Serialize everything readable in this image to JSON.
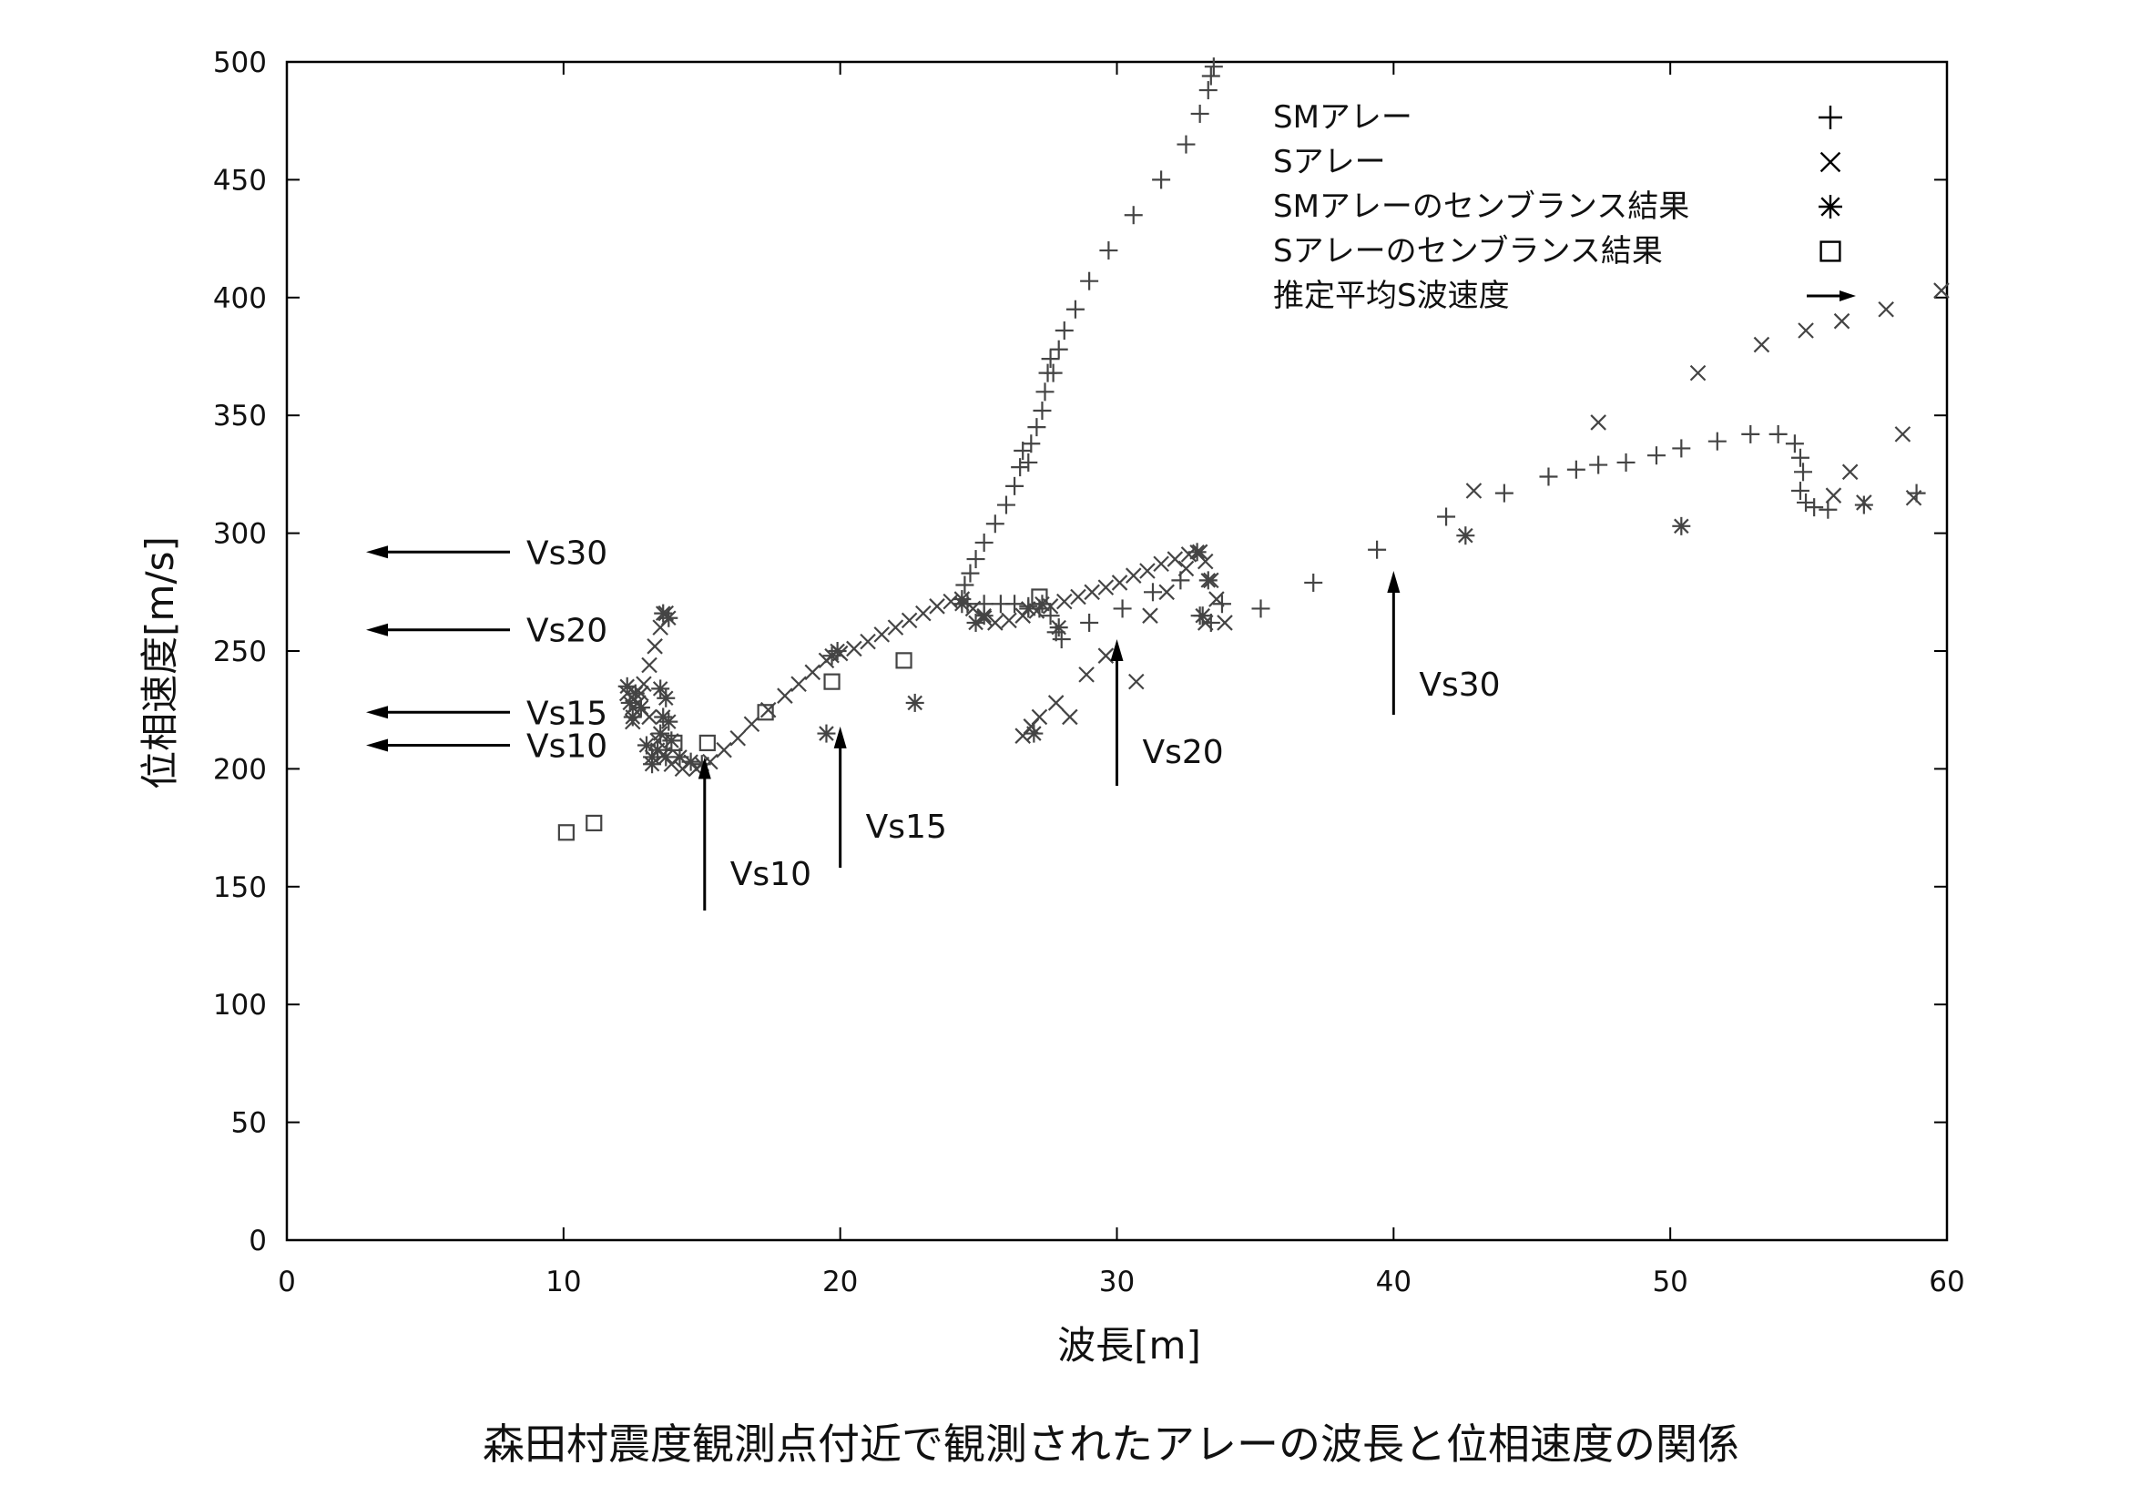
{
  "caption": "森田村震度観測点付近で観測されたアレーの波長と位相速度の関係",
  "chart_data": {
    "type": "scatter",
    "title": "",
    "xlabel": "波長[m]",
    "ylabel": "位相速度[m/s]",
    "xlim": [
      0,
      60
    ],
    "ylim": [
      0,
      500
    ],
    "xticks": [
      "0",
      "10",
      "20",
      "30",
      "40",
      "50",
      "60"
    ],
    "yticks": [
      "0",
      "50",
      "100",
      "150",
      "200",
      "250",
      "300",
      "350",
      "400",
      "450",
      "500"
    ],
    "grid": false,
    "legend_position": "top-right",
    "legend": [
      {
        "label": "SMアレー",
        "symbol": "+"
      },
      {
        "label": "Sアレー",
        "symbol": "×"
      },
      {
        "label": "SMアレーのセンブランス結果",
        "symbol": "※"
      },
      {
        "label": "Sアレーのセンブランス結果",
        "symbol": "□"
      },
      {
        "label": "推定平均S波速度",
        "symbol": "→"
      }
    ],
    "series": [
      {
        "name": "SMアレー",
        "marker": "plus",
        "points": [
          [
            24.4,
            272
          ],
          [
            24.5,
            278
          ],
          [
            24.7,
            283
          ],
          [
            24.9,
            289
          ],
          [
            25.2,
            296
          ],
          [
            25.6,
            304
          ],
          [
            26.0,
            312
          ],
          [
            26.3,
            320
          ],
          [
            26.5,
            328
          ],
          [
            26.6,
            335
          ],
          [
            26.8,
            330
          ],
          [
            26.9,
            338
          ],
          [
            27.1,
            345
          ],
          [
            27.3,
            352
          ],
          [
            27.4,
            360
          ],
          [
            27.5,
            368
          ],
          [
            27.6,
            374
          ],
          [
            27.7,
            368
          ],
          [
            27.9,
            378
          ],
          [
            28.1,
            386
          ],
          [
            28.5,
            395
          ],
          [
            29.0,
            407
          ],
          [
            29.7,
            420
          ],
          [
            30.6,
            435
          ],
          [
            31.6,
            450
          ],
          [
            32.5,
            465
          ],
          [
            33.0,
            478
          ],
          [
            33.3,
            488
          ],
          [
            33.4,
            494
          ],
          [
            33.5,
            498
          ],
          [
            24.6,
            270
          ],
          [
            25.2,
            270
          ],
          [
            25.8,
            270
          ],
          [
            26.3,
            270
          ],
          [
            26.8,
            269
          ],
          [
            27.2,
            268
          ],
          [
            27.6,
            265
          ],
          [
            27.8,
            258
          ],
          [
            28.0,
            255
          ],
          [
            29.0,
            262
          ],
          [
            30.2,
            268
          ],
          [
            31.3,
            275
          ],
          [
            32.3,
            280
          ],
          [
            33.0,
            265
          ],
          [
            33.4,
            262
          ],
          [
            33.8,
            270
          ],
          [
            35.2,
            268
          ],
          [
            37.1,
            279
          ],
          [
            39.4,
            293
          ],
          [
            41.9,
            307
          ],
          [
            44.0,
            317
          ],
          [
            45.6,
            324
          ],
          [
            46.6,
            327
          ],
          [
            47.4,
            329
          ],
          [
            48.4,
            330
          ],
          [
            49.5,
            333
          ],
          [
            50.4,
            336
          ],
          [
            51.7,
            339
          ],
          [
            52.9,
            342
          ],
          [
            53.9,
            342
          ],
          [
            54.5,
            338
          ],
          [
            54.7,
            332
          ],
          [
            54.8,
            326
          ],
          [
            54.7,
            318
          ],
          [
            54.9,
            313
          ],
          [
            55.2,
            311
          ],
          [
            55.7,
            310
          ],
          [
            57.0,
            312
          ],
          [
            58.9,
            317
          ]
        ]
      },
      {
        "name": "Sアレー",
        "marker": "cross",
        "points": [
          [
            12.5,
            220
          ],
          [
            12.7,
            228
          ],
          [
            12.9,
            236
          ],
          [
            13.1,
            244
          ],
          [
            13.3,
            252
          ],
          [
            13.5,
            260
          ],
          [
            13.7,
            266
          ],
          [
            12.3,
            232
          ],
          [
            12.5,
            226
          ],
          [
            12.8,
            232
          ],
          [
            13.1,
            222
          ],
          [
            13.4,
            212
          ],
          [
            13.6,
            206
          ],
          [
            13.9,
            202
          ],
          [
            14.3,
            200
          ],
          [
            14.8,
            200
          ],
          [
            15.3,
            203
          ],
          [
            15.8,
            208
          ],
          [
            16.3,
            213
          ],
          [
            16.8,
            219
          ],
          [
            17.4,
            225
          ],
          [
            18.0,
            231
          ],
          [
            18.5,
            236
          ],
          [
            19.0,
            241
          ],
          [
            19.5,
            246
          ],
          [
            20.0,
            249
          ],
          [
            20.5,
            251
          ],
          [
            21.0,
            254
          ],
          [
            21.5,
            257
          ],
          [
            22.0,
            260
          ],
          [
            22.5,
            263
          ],
          [
            23.0,
            266
          ],
          [
            23.5,
            269
          ],
          [
            24.0,
            271
          ],
          [
            24.4,
            272
          ],
          [
            24.8,
            268
          ],
          [
            25.2,
            264
          ],
          [
            25.6,
            262
          ],
          [
            26.1,
            263
          ],
          [
            26.6,
            265
          ],
          [
            27.1,
            267
          ],
          [
            27.6,
            269
          ],
          [
            28.1,
            271
          ],
          [
            28.6,
            273
          ],
          [
            29.1,
            275
          ],
          [
            29.6,
            277
          ],
          [
            30.1,
            279
          ],
          [
            30.6,
            282
          ],
          [
            31.1,
            284
          ],
          [
            31.6,
            287
          ],
          [
            32.1,
            289
          ],
          [
            32.6,
            291
          ],
          [
            33.0,
            292
          ],
          [
            33.2,
            288
          ],
          [
            33.4,
            280
          ],
          [
            33.6,
            272
          ],
          [
            33.9,
            262
          ],
          [
            26.6,
            214
          ],
          [
            26.9,
            218
          ],
          [
            27.2,
            222
          ],
          [
            27.8,
            228
          ],
          [
            28.3,
            222
          ],
          [
            28.9,
            240
          ],
          [
            29.6,
            248
          ],
          [
            30.7,
            237
          ],
          [
            31.2,
            265
          ],
          [
            31.8,
            275
          ],
          [
            32.5,
            285
          ],
          [
            33.2,
            262
          ],
          [
            42.9,
            318
          ],
          [
            47.4,
            347
          ],
          [
            51.0,
            368
          ],
          [
            53.3,
            380
          ],
          [
            54.9,
            386
          ],
          [
            56.2,
            390
          ],
          [
            57.8,
            395
          ],
          [
            59.8,
            403
          ],
          [
            56.5,
            326
          ],
          [
            58.4,
            342
          ],
          [
            55.9,
            316
          ],
          [
            57.0,
            313
          ],
          [
            58.8,
            315
          ]
        ]
      },
      {
        "name": "SMアレーのセンブランス結果",
        "marker": "asterisk",
        "points": [
          [
            12.3,
            235
          ],
          [
            12.4,
            228
          ],
          [
            12.6,
            232
          ],
          [
            12.8,
            226
          ],
          [
            12.5,
            222
          ],
          [
            13.0,
            210
          ],
          [
            13.2,
            205
          ],
          [
            13.4,
            208
          ],
          [
            13.5,
            215
          ],
          [
            13.6,
            222
          ],
          [
            13.7,
            230
          ],
          [
            13.8,
            220
          ],
          [
            13.9,
            212
          ],
          [
            13.7,
            205
          ],
          [
            13.2,
            202
          ],
          [
            13.5,
            234
          ],
          [
            13.6,
            266
          ],
          [
            13.8,
            264
          ],
          [
            14.2,
            205
          ],
          [
            14.6,
            203
          ],
          [
            15.0,
            202
          ],
          [
            19.5,
            215
          ],
          [
            19.7,
            248
          ],
          [
            19.9,
            250
          ],
          [
            22.7,
            228
          ],
          [
            24.4,
            270
          ],
          [
            24.9,
            262
          ],
          [
            25.2,
            265
          ],
          [
            26.8,
            268
          ],
          [
            27.0,
            215
          ],
          [
            27.3,
            270
          ],
          [
            27.9,
            260
          ],
          [
            32.9,
            292
          ],
          [
            33.1,
            265
          ],
          [
            33.3,
            280
          ],
          [
            42.6,
            299
          ],
          [
            50.4,
            303
          ]
        ]
      },
      {
        "name": "Sアレーのセンブランス結果",
        "marker": "square",
        "points": [
          [
            10.1,
            173
          ],
          [
            11.1,
            177
          ],
          [
            14.0,
            211
          ],
          [
            15.2,
            211
          ],
          [
            17.3,
            224
          ],
          [
            19.7,
            237
          ],
          [
            22.3,
            246
          ],
          [
            27.2,
            273
          ]
        ]
      }
    ],
    "annotations": [
      {
        "label": "Vs30",
        "direction": "left",
        "y": 292
      },
      {
        "label": "Vs20",
        "direction": "left",
        "y": 259
      },
      {
        "label": "Vs15",
        "direction": "left",
        "y": 224
      },
      {
        "label": "Vs10",
        "direction": "left",
        "y": 210
      },
      {
        "label": "Vs10",
        "direction": "up",
        "x": 15.1
      },
      {
        "label": "Vs15",
        "direction": "up",
        "x": 20.0
      },
      {
        "label": "Vs20",
        "direction": "up",
        "x": 30.0
      },
      {
        "label": "Vs30",
        "direction": "up",
        "x": 40.0
      }
    ]
  }
}
